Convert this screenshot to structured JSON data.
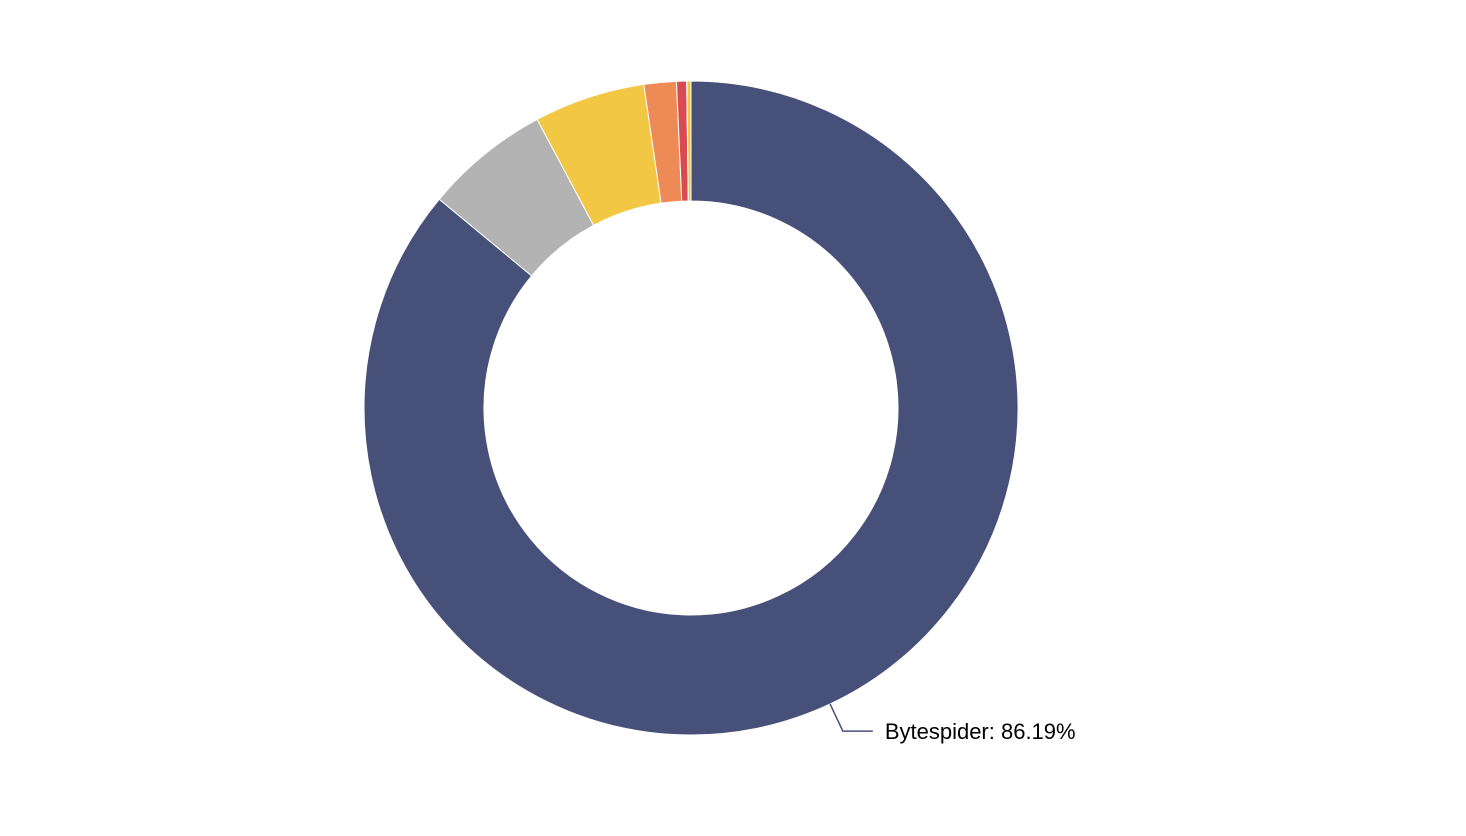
{
  "chart_data": {
    "type": "pie",
    "variant": "donut",
    "title": "",
    "slices": [
      {
        "label": "Bytespider",
        "value": 86.19,
        "color": "#475079"
      },
      {
        "label": "",
        "value": 6.2,
        "color": "#b3b3b3"
      },
      {
        "label": "",
        "value": 5.5,
        "color": "#f2c744"
      },
      {
        "label": "",
        "value": 1.6,
        "color": "#ee8a55"
      },
      {
        "label": "",
        "value": 0.5,
        "color": "#d94b52"
      },
      {
        "label": "",
        "value": 0.01,
        "color": "#475079"
      },
      {
        "label": "",
        "value": 0.2,
        "color": "#f2c744"
      }
    ],
    "callouts": [
      {
        "slice_index": 0,
        "text": "Bytespider: 86.19%"
      }
    ],
    "start": "top",
    "direction": "clockwise",
    "legend": "none"
  }
}
